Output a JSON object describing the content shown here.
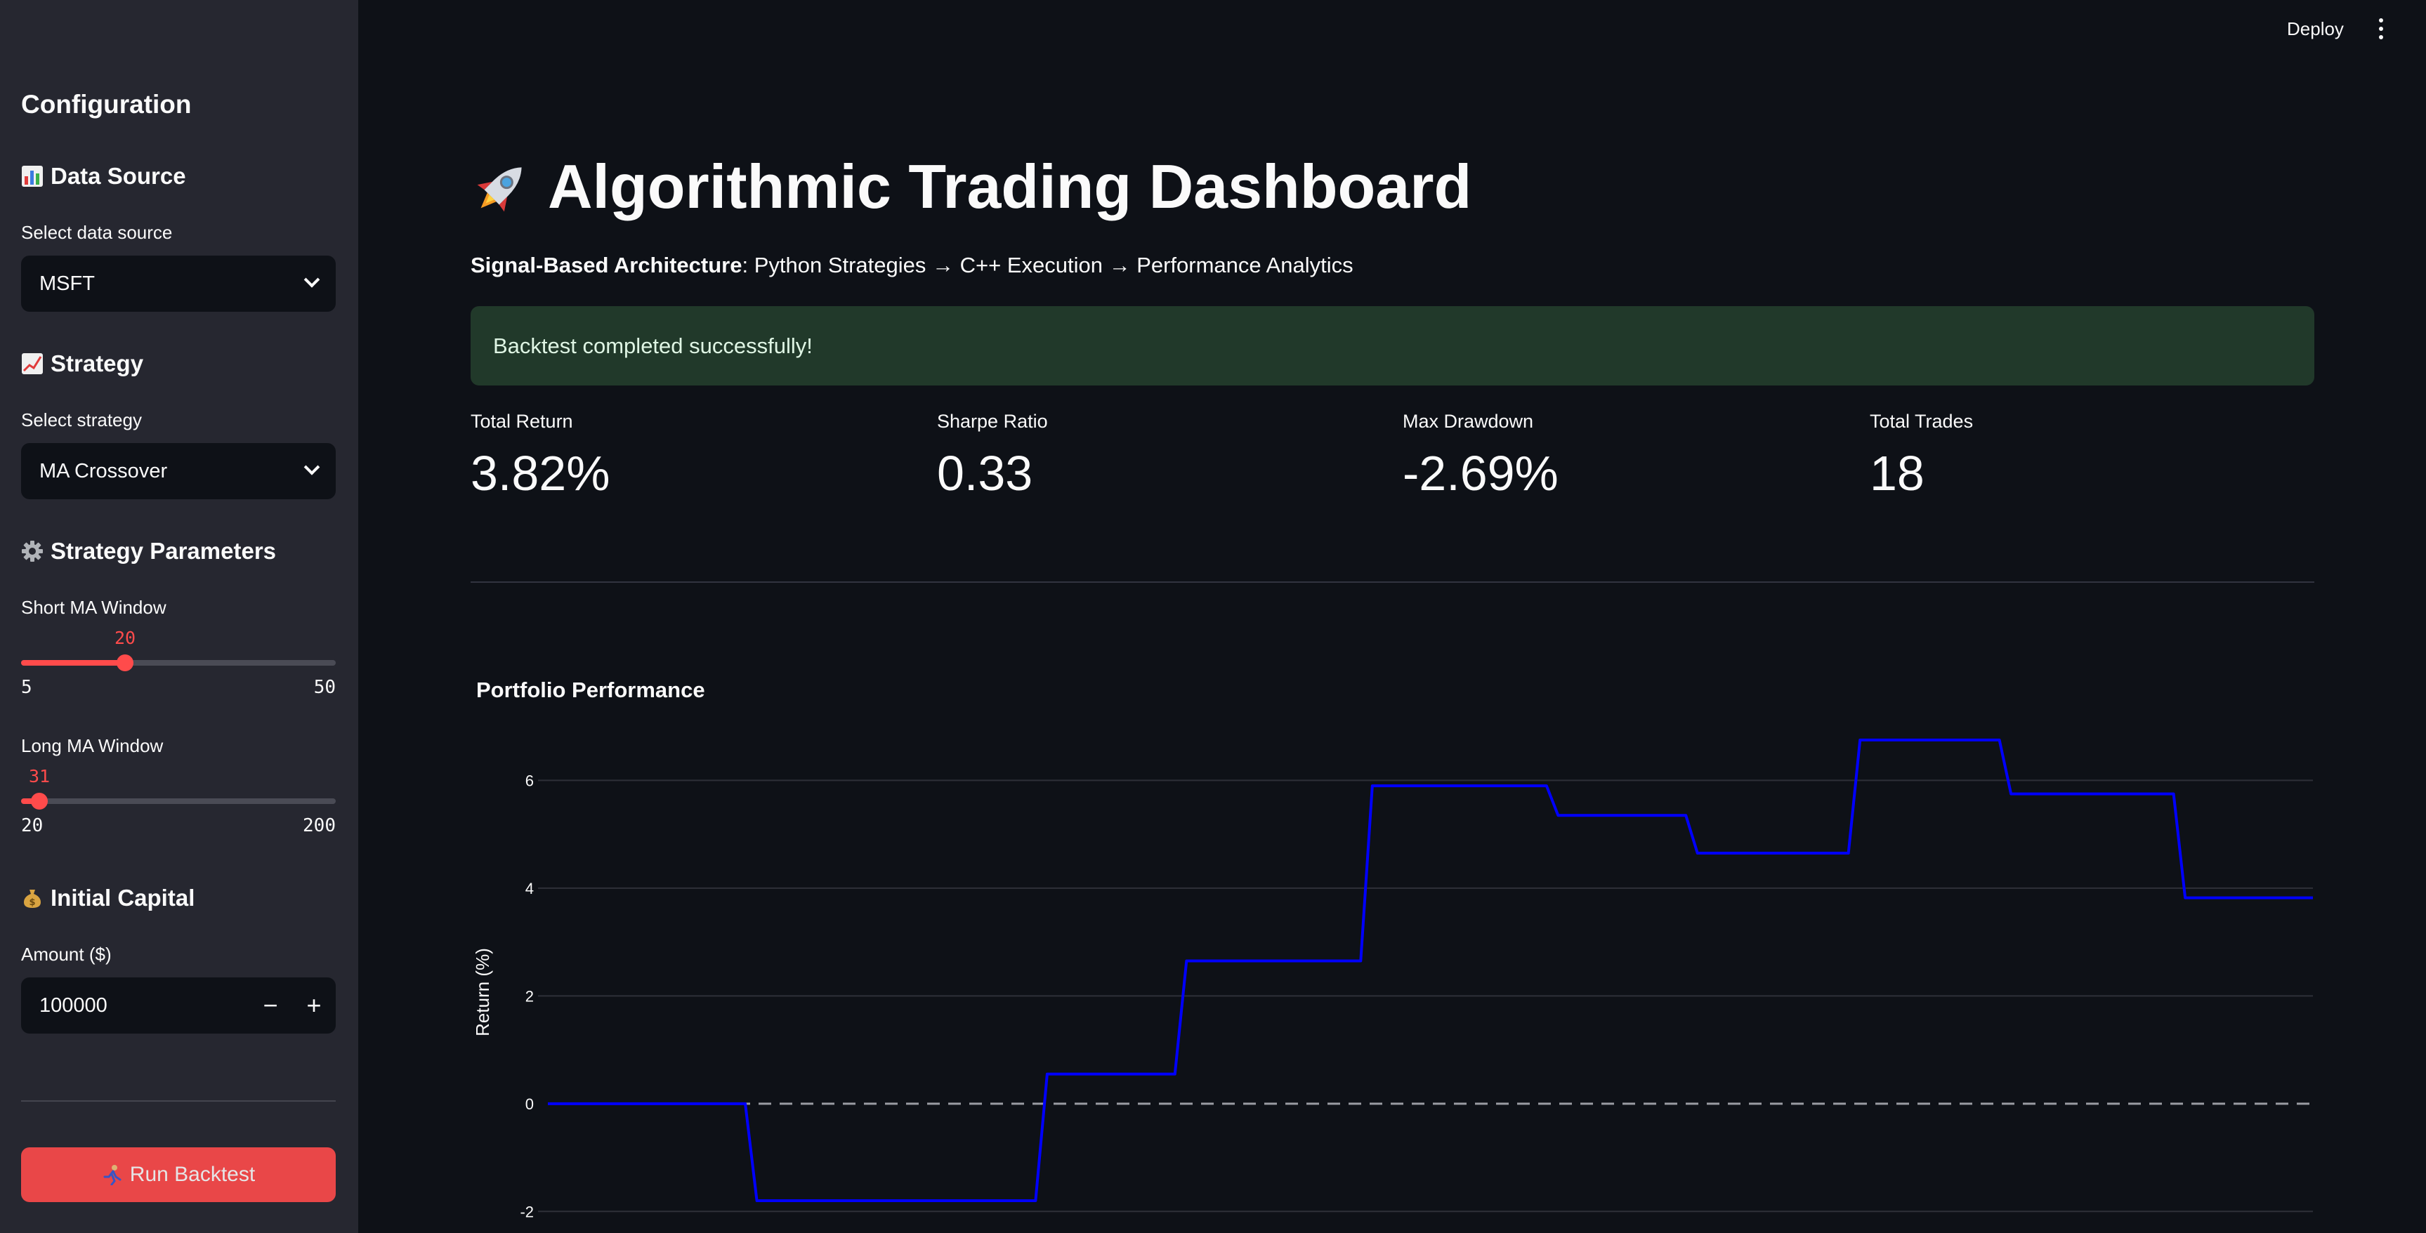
{
  "sidebar": {
    "heading": "Configuration",
    "data_source": {
      "section_title": "Data Source",
      "icon": "bar-chart-emoji",
      "select_label": "Select data source",
      "selected": "MSFT"
    },
    "strategy": {
      "section_title": "Strategy",
      "icon": "chart-increasing-emoji",
      "select_label": "Select strategy",
      "selected": "MA Crossover"
    },
    "parameters": {
      "section_title": "Strategy Parameters",
      "icon": "gear-emoji",
      "short_ma": {
        "label": "Short MA Window",
        "value": "20",
        "min": "5",
        "max": "50"
      },
      "long_ma": {
        "label": "Long MA Window",
        "value": "31",
        "min": "20",
        "max": "200"
      }
    },
    "capital": {
      "section_title": "Initial Capital",
      "icon": "money-bag-emoji",
      "amount_label": "Amount ($)",
      "amount_value": "100000",
      "minus_label": "−",
      "plus_label": "+"
    },
    "run_button": {
      "icon": "runner-emoji",
      "label": "Run Backtest"
    }
  },
  "header": {
    "deploy_label": "Deploy",
    "menu_icon": "kebab-menu-icon"
  },
  "main": {
    "title": "Algorithmic Trading Dashboard",
    "title_icon": "rocket-emoji",
    "subtitle_bold": "Signal-Based Architecture",
    "subtitle_rest": ": Python Strategies → C++ Execution → Performance Analytics",
    "success_message": "Backtest completed successfully!",
    "success_color": "#21392a",
    "metrics": [
      {
        "label": "Total Return",
        "value": "3.82%"
      },
      {
        "label": "Sharpe Ratio",
        "value": "0.33"
      },
      {
        "label": "Max Drawdown",
        "value": "-2.69%"
      },
      {
        "label": "Total Trades",
        "value": "18"
      }
    ],
    "chart_title": "Portfolio Performance"
  },
  "colors": {
    "accent": "#ff4b4b",
    "background": "#0e1117",
    "sidebar": "#262730",
    "line": "#0000ff"
  },
  "chart_data": {
    "type": "line",
    "title": "Portfolio Performance",
    "ylabel": "Return (%)",
    "xlabel": "",
    "ylim": [
      -2.4,
      6.8
    ],
    "yticks": [
      -2,
      0,
      2,
      4,
      6
    ],
    "grid": true,
    "x": [
      0,
      17,
      18,
      42,
      43,
      54,
      55,
      70,
      71,
      86,
      87,
      90,
      98,
      99,
      112,
      113,
      125,
      126,
      128,
      131,
      140,
      141,
      151,
      152
    ],
    "series": [
      {
        "values": [
          0,
          0,
          -1.8,
          -1.8,
          0.55,
          0.55,
          2.65,
          2.65,
          5.9,
          5.9,
          5.35,
          5.35,
          5.35,
          4.65,
          4.65,
          6.75,
          6.75,
          5.75,
          5.75,
          5.75,
          5.75,
          3.82,
          3.82,
          3.82
        ]
      }
    ],
    "reference_line": {
      "y": 0,
      "style": "dashed"
    }
  }
}
